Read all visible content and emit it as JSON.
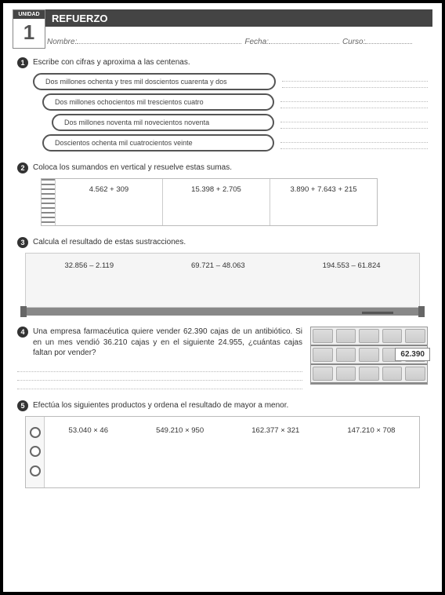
{
  "header": {
    "unit_label": "UNIDAD",
    "unit_number": "1",
    "title": "REFUERZO",
    "nombre_label": "Nombre:",
    "fecha_label": "Fecha:",
    "curso_label": "Curso:"
  },
  "ex1": {
    "num": "1",
    "prompt": "Escribe con cifras y aproxima a las centenas.",
    "items": [
      "Dos millones ochenta y tres mil doscientos cuarenta y dos",
      "Dos millones ochocientos mil  trescientos cuatro",
      "Dos millones noventa mil novecientos noventa",
      "Doscientos ochenta mil cuatrocientos veinte"
    ]
  },
  "ex2": {
    "num": "2",
    "prompt": "Coloca los sumandos en vertical y resuelve estas sumas.",
    "cols": [
      "4.562 + 309",
      "15.398 + 2.705",
      "3.890 + 7.643 + 215"
    ]
  },
  "ex3": {
    "num": "3",
    "prompt": "Calcula el resultado de estas sustracciones.",
    "cols": [
      "32.856 – 2.119",
      "69.721 – 48.063",
      "194.553 – 61.824"
    ]
  },
  "ex4": {
    "num": "4",
    "prompt": "Una empresa farmacéutica quiere vender 62.390 cajas de un antibiótico. Si en un mes vendió 36.210 cajas y en el siguiente 24.955, ¿cuántas cajas faltan por vender?",
    "shelf_label": "62.390"
  },
  "ex5": {
    "num": "5",
    "prompt": "Efectúa los siguientes productos y ordena el resultado de mayor a menor.",
    "cols": [
      "53.040 × 46",
      "549.210 × 950",
      "162.377 × 321",
      "147.210 × 708"
    ]
  },
  "colors": {
    "header_bg": "#444444",
    "pill_border": "#555555",
    "board_frame": "#888888"
  }
}
